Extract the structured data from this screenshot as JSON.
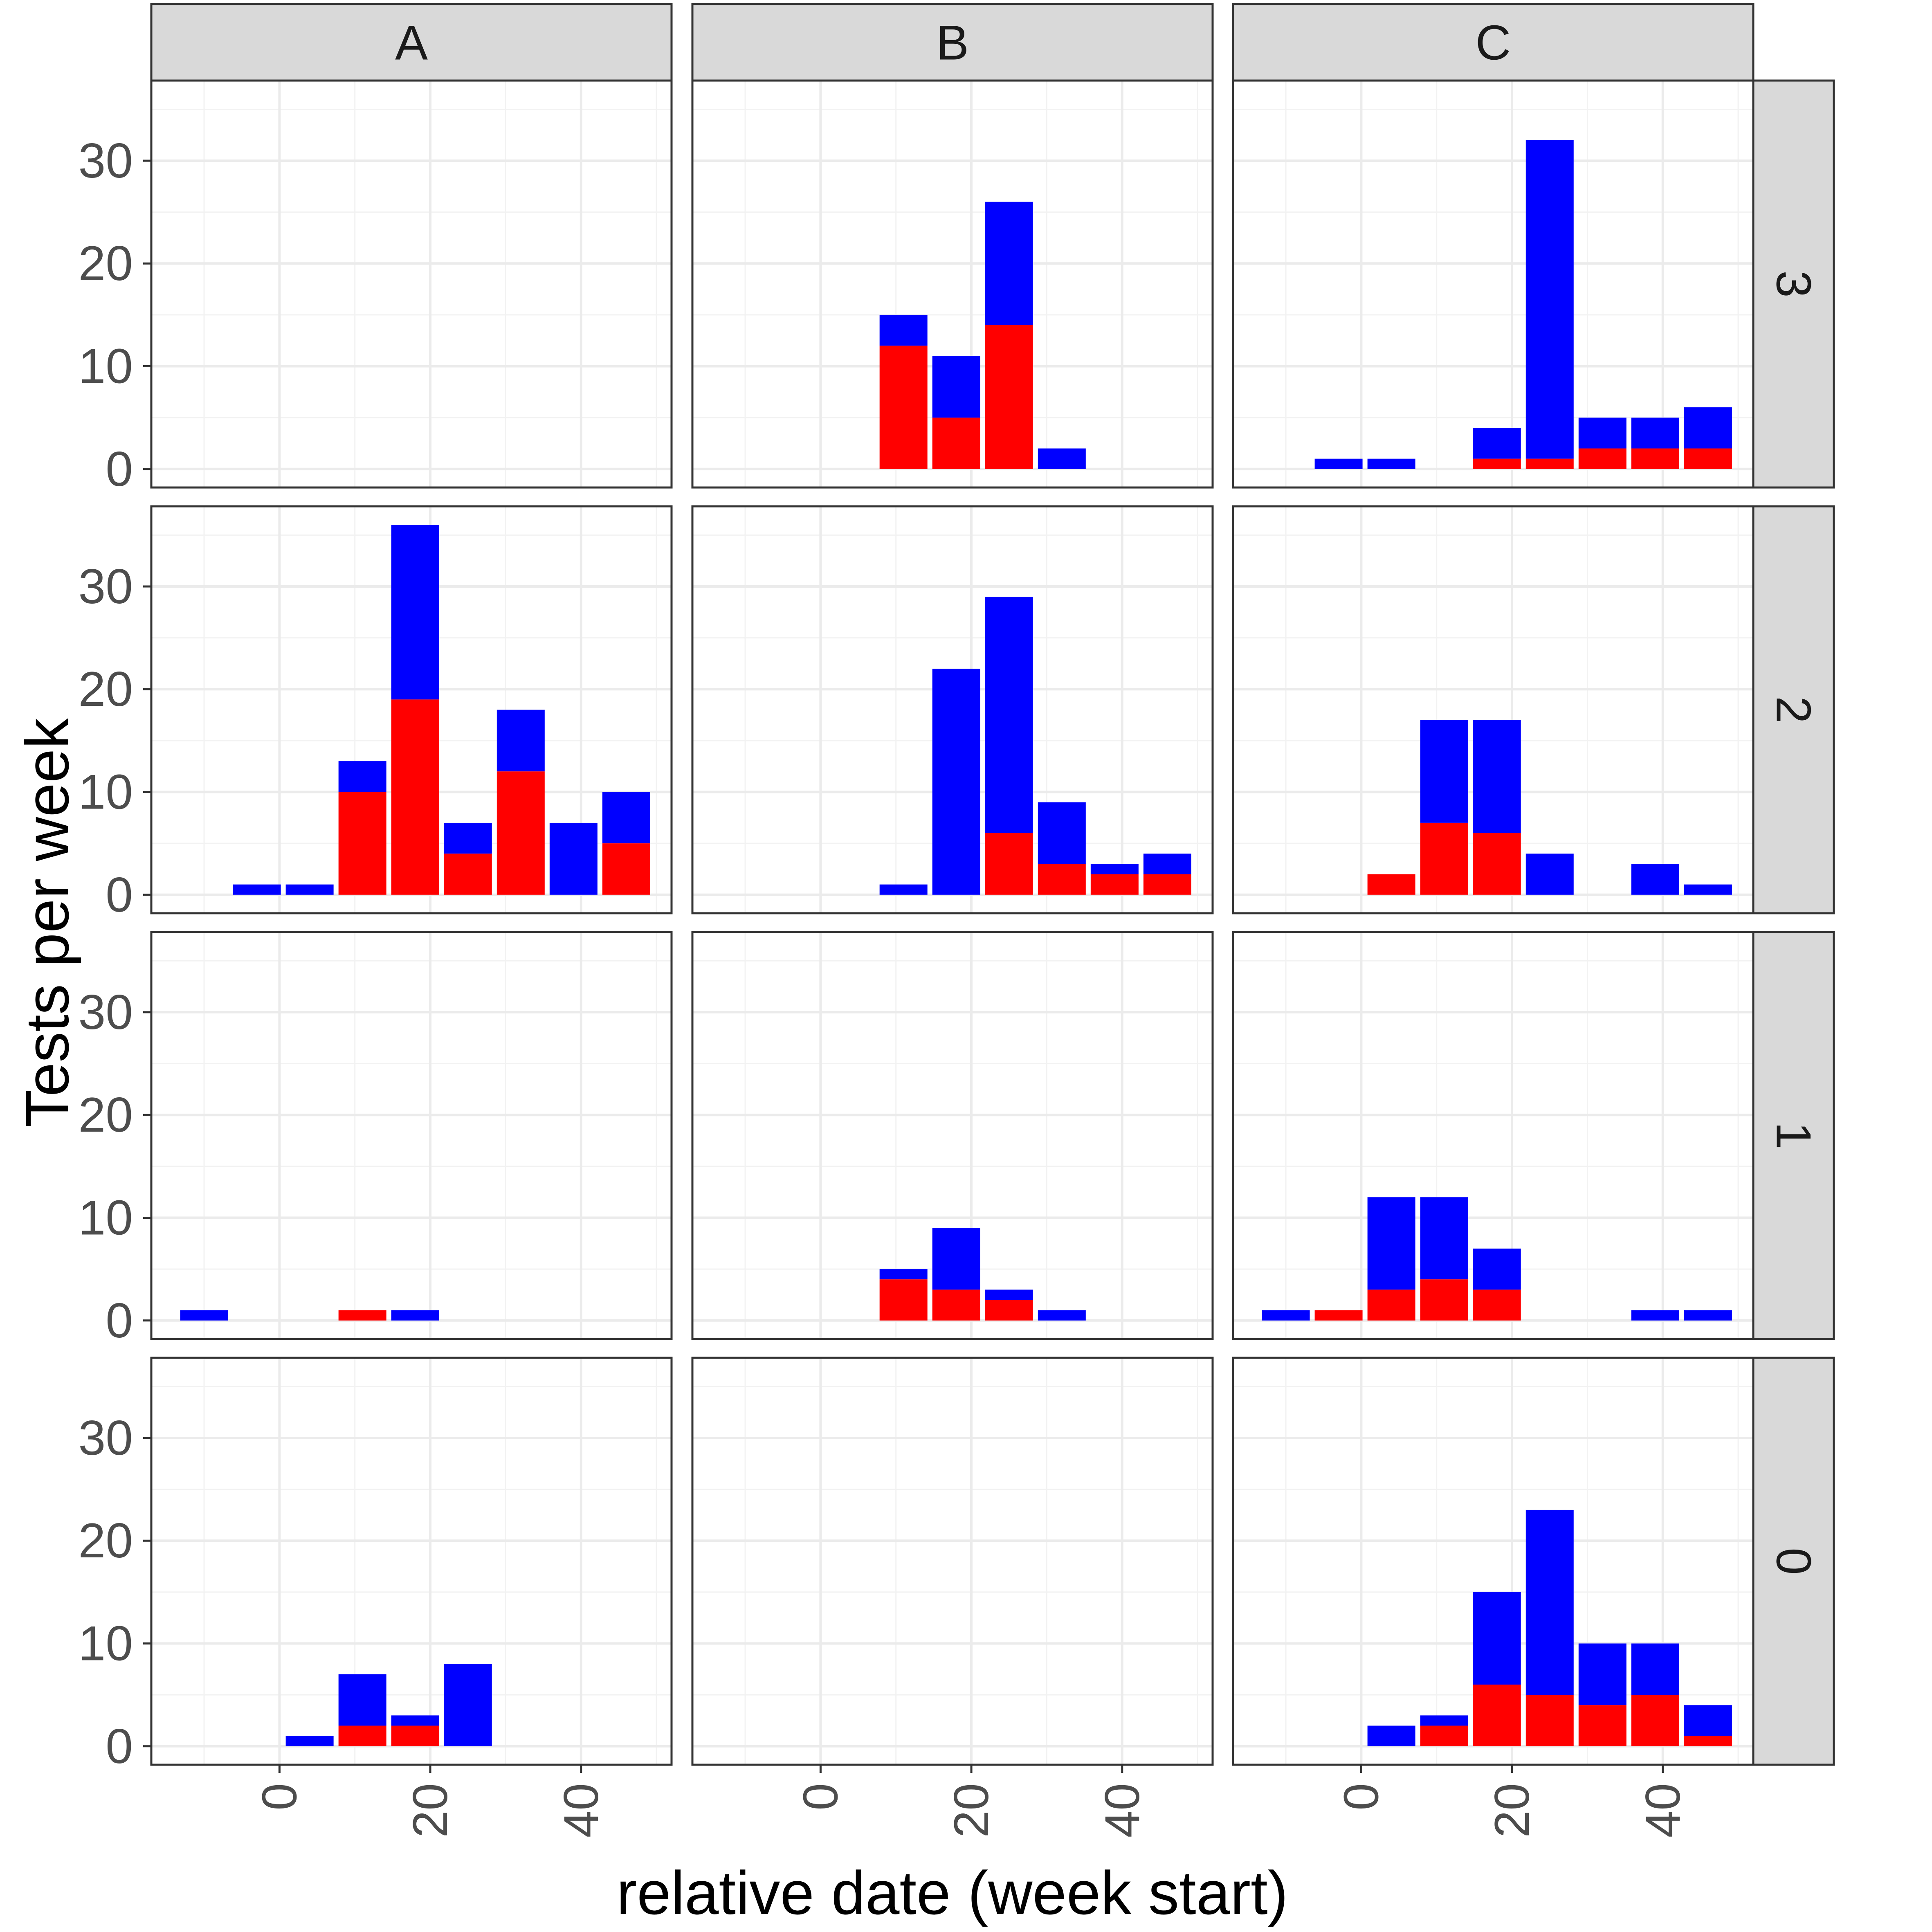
{
  "chart_data": {
    "type": "bar",
    "stacked": true,
    "xlabel": "relative date (week start)",
    "ylabel": "Tests per week",
    "x_ticks": [
      0,
      20,
      40
    ],
    "y_ticks": [
      0,
      10,
      20,
      30
    ],
    "xlim": [
      -17,
      52
    ],
    "ylim": [
      -1.8,
      37.8
    ],
    "grid": true,
    "colors": {
      "red_segment": "#ff0000",
      "blue_segment": "#0000ff"
    },
    "columns": [
      "A",
      "B",
      "C"
    ],
    "rows": [
      "3",
      "2",
      "1",
      "0"
    ],
    "panels": [
      {
        "col": "A",
        "row": "3",
        "bars": []
      },
      {
        "col": "B",
        "row": "3",
        "bars": [
          {
            "x": 11,
            "red": 12,
            "total": 15
          },
          {
            "x": 18,
            "red": 5,
            "total": 11
          },
          {
            "x": 25,
            "red": 14,
            "total": 26
          },
          {
            "x": 32,
            "red": 0,
            "total": 2
          }
        ]
      },
      {
        "col": "C",
        "row": "3",
        "bars": [
          {
            "x": -3,
            "red": 0,
            "total": 1
          },
          {
            "x": 4,
            "red": 0,
            "total": 1
          },
          {
            "x": 18,
            "red": 1,
            "total": 4
          },
          {
            "x": 25,
            "red": 1,
            "total": 32
          },
          {
            "x": 32,
            "red": 2,
            "total": 5
          },
          {
            "x": 39,
            "red": 2,
            "total": 5
          },
          {
            "x": 46,
            "red": 2,
            "total": 6
          }
        ]
      },
      {
        "col": "A",
        "row": "2",
        "bars": [
          {
            "x": -3,
            "red": 0,
            "total": 1
          },
          {
            "x": 4,
            "red": 0,
            "total": 1
          },
          {
            "x": 11,
            "red": 10,
            "total": 13
          },
          {
            "x": 18,
            "red": 19,
            "total": 36
          },
          {
            "x": 25,
            "red": 4,
            "total": 7
          },
          {
            "x": 32,
            "red": 12,
            "total": 18
          },
          {
            "x": 39,
            "red": 0,
            "total": 7
          },
          {
            "x": 46,
            "red": 5,
            "total": 10
          }
        ]
      },
      {
        "col": "B",
        "row": "2",
        "bars": [
          {
            "x": 11,
            "red": 0,
            "total": 1
          },
          {
            "x": 18,
            "red": 0,
            "total": 22
          },
          {
            "x": 25,
            "red": 6,
            "total": 29
          },
          {
            "x": 32,
            "red": 3,
            "total": 9
          },
          {
            "x": 39,
            "red": 2,
            "total": 3
          },
          {
            "x": 46,
            "red": 2,
            "total": 4
          }
        ]
      },
      {
        "col": "C",
        "row": "2",
        "bars": [
          {
            "x": 4,
            "red": 2,
            "total": 2
          },
          {
            "x": 11,
            "red": 7,
            "total": 17
          },
          {
            "x": 18,
            "red": 6,
            "total": 17
          },
          {
            "x": 25,
            "red": 0,
            "total": 4
          },
          {
            "x": 39,
            "red": 0,
            "total": 3
          },
          {
            "x": 46,
            "red": 0,
            "total": 1
          }
        ]
      },
      {
        "col": "A",
        "row": "1",
        "bars": [
          {
            "x": -10,
            "red": 0,
            "total": 1
          },
          {
            "x": 11,
            "red": 1,
            "total": 1
          },
          {
            "x": 18,
            "red": 0,
            "total": 1
          }
        ]
      },
      {
        "col": "B",
        "row": "1",
        "bars": [
          {
            "x": 11,
            "red": 4,
            "total": 5
          },
          {
            "x": 18,
            "red": 3,
            "total": 9
          },
          {
            "x": 25,
            "red": 2,
            "total": 3
          },
          {
            "x": 32,
            "red": 0,
            "total": 1
          }
        ]
      },
      {
        "col": "C",
        "row": "1",
        "bars": [
          {
            "x": -10,
            "red": 0,
            "total": 1
          },
          {
            "x": -3,
            "red": 1,
            "total": 1
          },
          {
            "x": 4,
            "red": 3,
            "total": 12
          },
          {
            "x": 11,
            "red": 4,
            "total": 12
          },
          {
            "x": 18,
            "red": 3,
            "total": 7
          },
          {
            "x": 39,
            "red": 0,
            "total": 1
          },
          {
            "x": 46,
            "red": 0,
            "total": 1
          }
        ]
      },
      {
        "col": "A",
        "row": "0",
        "bars": [
          {
            "x": 4,
            "red": 0,
            "total": 1
          },
          {
            "x": 11,
            "red": 2,
            "total": 7
          },
          {
            "x": 18,
            "red": 2,
            "total": 3
          },
          {
            "x": 25,
            "red": 0,
            "total": 8
          }
        ]
      },
      {
        "col": "B",
        "row": "0",
        "bars": []
      },
      {
        "col": "C",
        "row": "0",
        "bars": [
          {
            "x": 4,
            "red": 0,
            "total": 2
          },
          {
            "x": 11,
            "red": 2,
            "total": 3
          },
          {
            "x": 18,
            "red": 6,
            "total": 15
          },
          {
            "x": 25,
            "red": 5,
            "total": 23
          },
          {
            "x": 32,
            "red": 4,
            "total": 10
          },
          {
            "x": 39,
            "red": 5,
            "total": 10
          },
          {
            "x": 46,
            "red": 1,
            "total": 4
          }
        ]
      }
    ]
  }
}
